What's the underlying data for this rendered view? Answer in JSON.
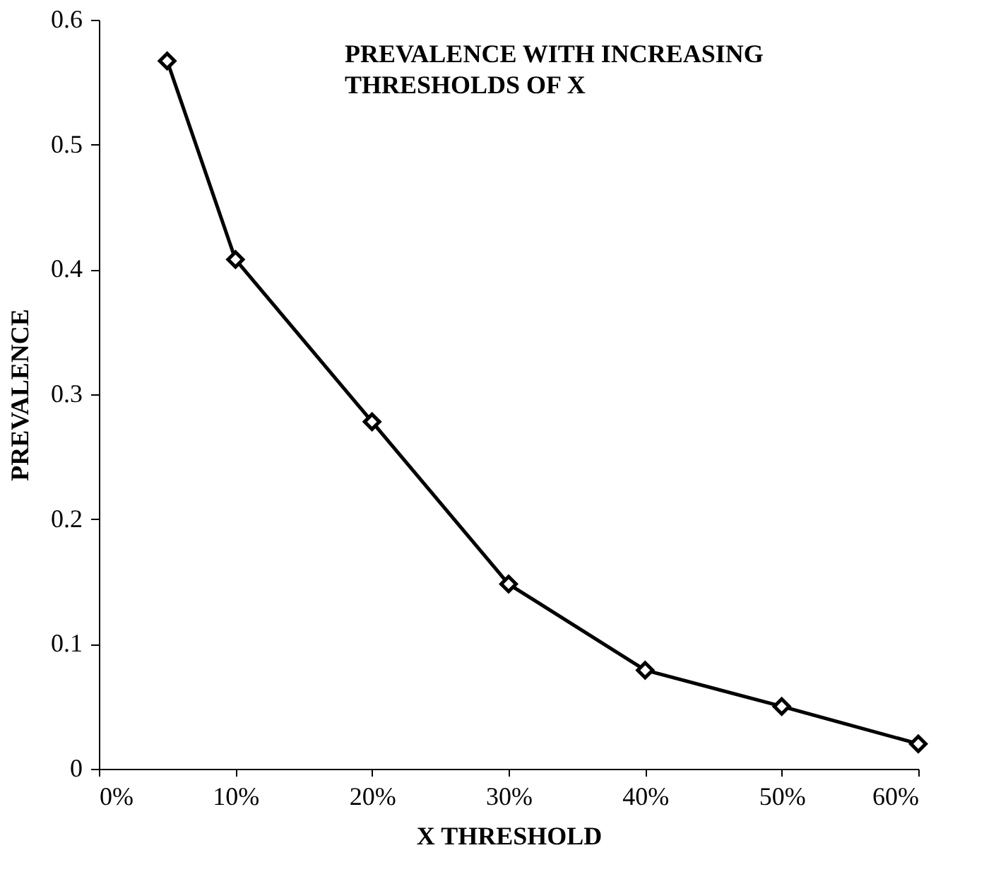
{
  "chart_data": {
    "type": "line",
    "title": "PREVALENCE WITH INCREASING THRESHOLDS OF X",
    "xlabel": "X THRESHOLD",
    "ylabel": "PREVALENCE",
    "x": [
      5,
      10,
      20,
      30,
      40,
      50,
      60
    ],
    "series": [
      {
        "color": "#000000",
        "values": [
          0.567,
          0.408,
          0.278,
          0.148,
          0.079,
          0.05,
          0.02
        ]
      }
    ],
    "xlim": [
      0,
      60
    ],
    "xticks": [
      {
        "value": 0,
        "label": "0%"
      },
      {
        "value": 10,
        "label": "10%"
      },
      {
        "value": 20,
        "label": "20%"
      },
      {
        "value": 30,
        "label": "30%"
      },
      {
        "value": 40,
        "label": "40%"
      },
      {
        "value": 50,
        "label": "50%"
      },
      {
        "value": 60,
        "label": "60%"
      }
    ],
    "ylim": [
      0,
      0.6
    ],
    "yticks": [
      0,
      0.1,
      0.2,
      0.3,
      0.4,
      0.5,
      0.6
    ],
    "marker": "diamond",
    "line_style": "solid",
    "grid": false,
    "legend": false
  }
}
